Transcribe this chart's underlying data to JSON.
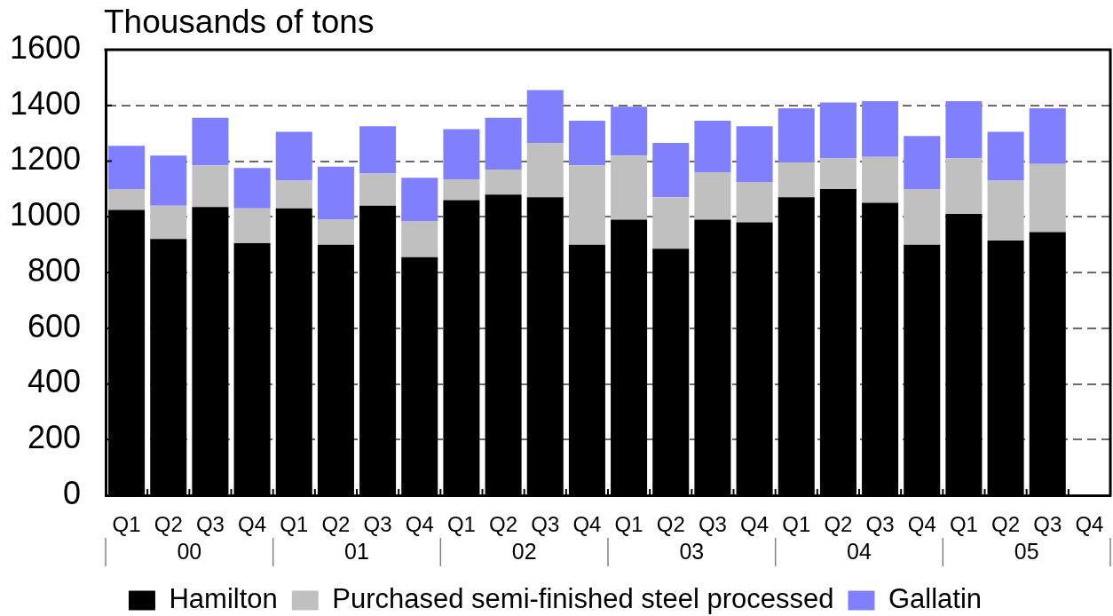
{
  "chart_data": {
    "type": "bar",
    "stacked": true,
    "ylabel": "Thousands of tons",
    "categories": [
      "Q1",
      "Q2",
      "Q3",
      "Q4",
      "Q1",
      "Q2",
      "Q3",
      "Q4",
      "Q1",
      "Q2",
      "Q3",
      "Q4",
      "Q1",
      "Q2",
      "Q3",
      "Q4",
      "Q1",
      "Q2",
      "Q3",
      "Q4",
      "Q1",
      "Q2",
      "Q3",
      "Q4"
    ],
    "annotations": [
      "00",
      "01",
      "02",
      "03",
      "04",
      "05"
    ],
    "series": [
      {
        "name": "Hamilton",
        "color": "#000000",
        "values": [
          1025,
          920,
          1035,
          905,
          1030,
          900,
          1040,
          855,
          1060,
          1080,
          1070,
          900,
          990,
          885,
          990,
          980,
          1070,
          1100,
          1050,
          900,
          1010,
          915,
          945,
          null
        ]
      },
      {
        "name": "Purchased semi-finished steel processed",
        "color": "#c0c0c0",
        "values": [
          75,
          120,
          150,
          125,
          100,
          90,
          115,
          130,
          75,
          90,
          195,
          285,
          230,
          185,
          170,
          145,
          125,
          110,
          165,
          200,
          200,
          215,
          245,
          null
        ]
      },
      {
        "name": "Gallatin",
        "color": "#8080ff",
        "values": [
          155,
          180,
          170,
          145,
          175,
          190,
          170,
          155,
          180,
          185,
          190,
          160,
          175,
          195,
          185,
          200,
          195,
          200,
          200,
          190,
          205,
          175,
          200,
          null
        ]
      }
    ],
    "ylim": [
      0,
      1600
    ],
    "yticks": [
      0,
      200,
      400,
      600,
      800,
      1000,
      1200,
      1400,
      1600
    ],
    "grid": "y",
    "legend": "bottom"
  }
}
